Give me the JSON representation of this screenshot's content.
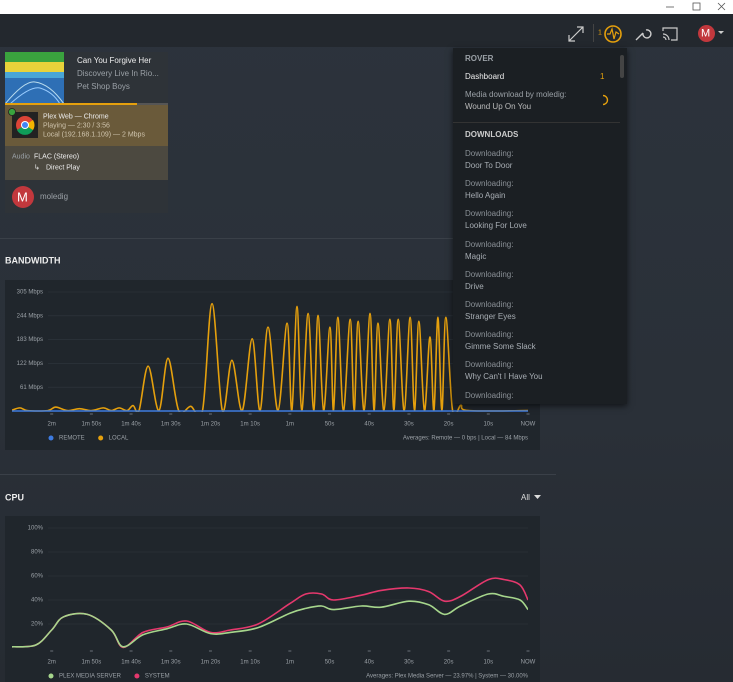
{
  "header": {
    "activity_count": "1",
    "avatar": "M"
  },
  "now_playing": {
    "title": "Can You Forgive Her",
    "album": "Discovery Live In Rio...",
    "artist": "Pet Shop Boys",
    "player": "Plex Web  —  Chrome",
    "state": "Playing — 2:30 / 3:56",
    "connection": "Local (192.168.1.109) — 2 Mbps",
    "stream_label": "Audio",
    "stream": "FLAC (Stereo)",
    "decision": "Direct Play",
    "user_avatar": "M",
    "user": "moledig"
  },
  "activity_menu": {
    "server": "ROVER",
    "dashboard": "Dashboard",
    "dashboard_count": "1",
    "download_label": "Media download by moledig:",
    "download_title": "Wound Up On You",
    "downloads_heading": "DOWNLOADS",
    "downloads": [
      {
        "status": "Downloading:",
        "title": "Door To Door"
      },
      {
        "status": "Downloading:",
        "title": "Hello Again"
      },
      {
        "status": "Downloading:",
        "title": "Looking For Love"
      },
      {
        "status": "Downloading:",
        "title": "Magic"
      },
      {
        "status": "Downloading:",
        "title": "Drive"
      },
      {
        "status": "Downloading:",
        "title": "Stranger Eyes"
      },
      {
        "status": "Downloading:",
        "title": "Gimme Some Slack"
      },
      {
        "status": "Downloading:",
        "title": "Why Can't I Have You"
      },
      {
        "status": "Downloading:"
      }
    ]
  },
  "chart_data": [
    {
      "type": "line",
      "title": "BANDWIDTH",
      "x": [
        -130,
        -128,
        -126,
        -121,
        -119,
        -116,
        -113,
        -110,
        -107,
        -105,
        -103,
        -101,
        -99.5,
        -98,
        -95.7,
        -93,
        -90.7,
        -88,
        -85,
        -82,
        -79.6,
        -77,
        -74.6,
        -72,
        -69.5,
        -67.5,
        -65.5,
        -63,
        -60.7,
        -59.5,
        -58.2,
        -57,
        -55.4,
        -54,
        -52.9,
        -51.5,
        -49.9,
        -49,
        -47.9,
        -46.5,
        -44.8,
        -43.8,
        -42.8,
        -41.3,
        -39.8,
        -38.8,
        -37.8,
        -36.3,
        -34.8,
        -33.8,
        -32.7,
        -31.2,
        -29.7,
        -28.6,
        -27.5,
        -26.1,
        -24.7,
        -23.7,
        -22.7,
        -21.7,
        -20.7,
        -19,
        -16.9,
        -15,
        0
      ],
      "series": [
        {
          "name": "REMOTE",
          "color": "#3d7be0",
          "values": [
            0,
            0,
            0,
            0,
            0,
            0,
            0,
            0,
            0,
            0,
            0,
            0,
            0,
            0,
            0,
            0,
            0,
            0,
            0,
            0,
            0,
            0,
            0,
            0,
            0,
            0,
            0,
            0,
            0,
            0,
            0,
            0,
            0,
            0,
            0,
            0,
            0,
            0,
            0,
            0,
            0,
            0,
            0,
            0,
            0,
            0,
            0,
            0,
            0,
            0,
            0,
            0,
            0,
            0,
            0,
            0,
            0,
            0,
            0,
            0,
            0,
            0,
            0,
            0,
            0
          ]
        },
        {
          "name": "LOCAL",
          "color": "#e5a00d",
          "values": [
            2,
            8,
            1,
            1,
            10,
            1,
            6,
            1,
            8,
            1,
            8,
            1,
            14,
            1,
            115,
            1,
            135,
            1,
            12,
            1,
            275,
            1,
            130,
            1,
            185,
            1,
            215,
            1,
            225,
            1,
            268,
            1,
            250,
            1,
            245,
            1,
            215,
            1,
            240,
            1,
            235,
            1,
            230,
            1,
            250,
            1,
            225,
            1,
            235,
            1,
            235,
            1,
            240,
            1,
            230,
            1,
            190,
            1,
            240,
            1,
            240,
            1,
            15,
            1,
            1
          ]
        }
      ],
      "xlim": [
        -130,
        0
      ],
      "xticks": [
        {
          "value": -120,
          "label": "2m"
        },
        {
          "value": -110,
          "label": "1m 50s"
        },
        {
          "value": -100,
          "label": "1m 40s"
        },
        {
          "value": -90,
          "label": "1m 30s"
        },
        {
          "value": -80,
          "label": "1m 20s"
        },
        {
          "value": -70,
          "label": "1m 10s"
        },
        {
          "value": -60,
          "label": "1m"
        },
        {
          "value": -50,
          "label": "50s"
        },
        {
          "value": -40,
          "label": "40s"
        },
        {
          "value": -30,
          "label": "30s"
        },
        {
          "value": -20,
          "label": "20s"
        },
        {
          "value": -10,
          "label": "10s"
        },
        {
          "value": 0,
          "label": "NOW"
        }
      ],
      "ylim": [
        0,
        305
      ],
      "yticks": [
        {
          "value": 61,
          "label": "61 Mbps"
        },
        {
          "value": 122,
          "label": "122 Mbps"
        },
        {
          "value": 183,
          "label": "183 Mbps"
        },
        {
          "value": 244,
          "label": "244 Mbps"
        },
        {
          "value": 305,
          "label": "305 Mbps"
        }
      ],
      "grid": true,
      "footer": "Averages: Remote — 0 bps | Local — 84 Mbps"
    },
    {
      "type": "line",
      "title": "CPU",
      "filter": "All",
      "x": [
        -130,
        -124,
        -120,
        -117,
        -111,
        -105,
        -102,
        -97,
        -91,
        -86,
        -80,
        -75,
        -68,
        -60,
        -56,
        -52,
        -49,
        -42,
        -37,
        -30,
        -25,
        -21,
        -17,
        -10,
        -6,
        -2,
        0
      ],
      "series": [
        {
          "name": "PLEX MEDIA SERVER",
          "color": "#a6d68c",
          "values": [
            1,
            2.5,
            15,
            26,
            28,
            15,
            1,
            11,
            16,
            20,
            12,
            13,
            17,
            29,
            33,
            35,
            32,
            35,
            34,
            39,
            36,
            28,
            35,
            45,
            43,
            40,
            32
          ]
        },
        {
          "name": "SYSTEM",
          "color": "#e5386d",
          "values": [
            1,
            2.5,
            15,
            26,
            28,
            15,
            0.5,
            13,
            17.5,
            22.5,
            13,
            15,
            20,
            37,
            45,
            45,
            40,
            44,
            48,
            50,
            47,
            39,
            43,
            57,
            57,
            52.5,
            40
          ]
        }
      ],
      "xlim": [
        -130,
        0
      ],
      "xticks": [
        {
          "value": -120,
          "label": "2m"
        },
        {
          "value": -110,
          "label": "1m 50s"
        },
        {
          "value": -100,
          "label": "1m 40s"
        },
        {
          "value": -90,
          "label": "1m 30s"
        },
        {
          "value": -80,
          "label": "1m 20s"
        },
        {
          "value": -70,
          "label": "1m 10s"
        },
        {
          "value": -60,
          "label": "1m"
        },
        {
          "value": -50,
          "label": "50s"
        },
        {
          "value": -40,
          "label": "40s"
        },
        {
          "value": -30,
          "label": "30s"
        },
        {
          "value": -20,
          "label": "20s"
        },
        {
          "value": -10,
          "label": "10s"
        },
        {
          "value": 0,
          "label": "NOW"
        }
      ],
      "ylim": [
        0,
        100
      ],
      "yticks": [
        {
          "value": 20,
          "label": "20%"
        },
        {
          "value": 40,
          "label": "40%"
        },
        {
          "value": 60,
          "label": "60%"
        },
        {
          "value": 80,
          "label": "80%"
        },
        {
          "value": 100,
          "label": "100%"
        }
      ],
      "grid": true,
      "footer": "Averages: Plex Media Server — 23.97% | System — 30.00%"
    }
  ]
}
